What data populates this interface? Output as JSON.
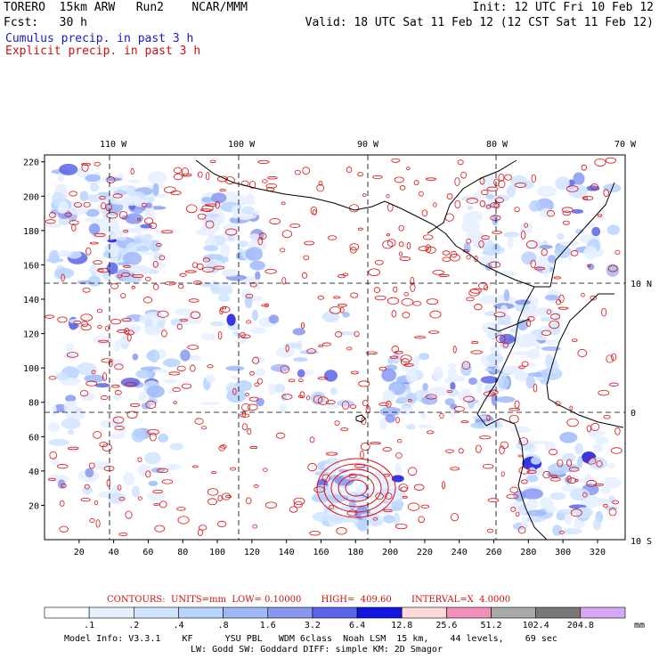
{
  "header": {
    "line1_left": "TORERO  15km ARW   Run2    NCAR/MMM",
    "line1_right": "Init: 12 UTC Fri 10 Feb 12",
    "line2_left": "Fcst:   30 h",
    "line2_right": "Valid: 18 UTC Sat 11 Feb 12 (12 CST Sat 11 Feb 12)",
    "cumulus": "Cumulus precip. in past 3 h",
    "explicit": "Explicit precip. in past 3 h"
  },
  "map": {
    "lon_labels": [
      "110 W",
      "100 W",
      "90 W",
      "80 W",
      "70 W"
    ],
    "lat_labels": [
      "10 N",
      "0",
      "10 S"
    ],
    "y_ticks": [
      "220",
      "200",
      "180",
      "160",
      "140",
      "120",
      "100",
      "80",
      "60",
      "40",
      "20"
    ],
    "x_ticks": [
      "20",
      "40",
      "60",
      "80",
      "100",
      "120",
      "140",
      "160",
      "180",
      "200",
      "220",
      "240",
      "260",
      "280",
      "300",
      "320"
    ],
    "colors": {
      "cumulus": "#3344dd",
      "explicit": "#dd1111",
      "coast": "#000000"
    }
  },
  "contours": {
    "text": "CONTOURS:  UNITS=mm  LOW= 0.10000       HIGH=  409.60       INTERVAL=X  4.0000"
  },
  "colorbar": {
    "labels": [
      ".1",
      ".2",
      ".4",
      ".8",
      "1.6",
      "3.2",
      "6.4",
      "12.8",
      "25.6",
      "51.2",
      "102.4",
      "204.8"
    ],
    "unit": "mm",
    "colors": [
      "#ffffff",
      "#e8f0ff",
      "#d0e4ff",
      "#b8d4ff",
      "#a0b8f8",
      "#8898f0",
      "#5c64e8",
      "#1414e0",
      "#ffd8d8",
      "#f090b8",
      "#a8a8a8",
      "#787878",
      "#d8a8f8"
    ]
  },
  "footer": {
    "line1": "Model Info: V3.3.1    KF      YSU PBL   WDM 6class  Noah LSM  15 km,    44 levels,    69 sec",
    "line2": "LW: Godd SW: Goddard DIFF: simple KM: 2D Smagor"
  }
}
